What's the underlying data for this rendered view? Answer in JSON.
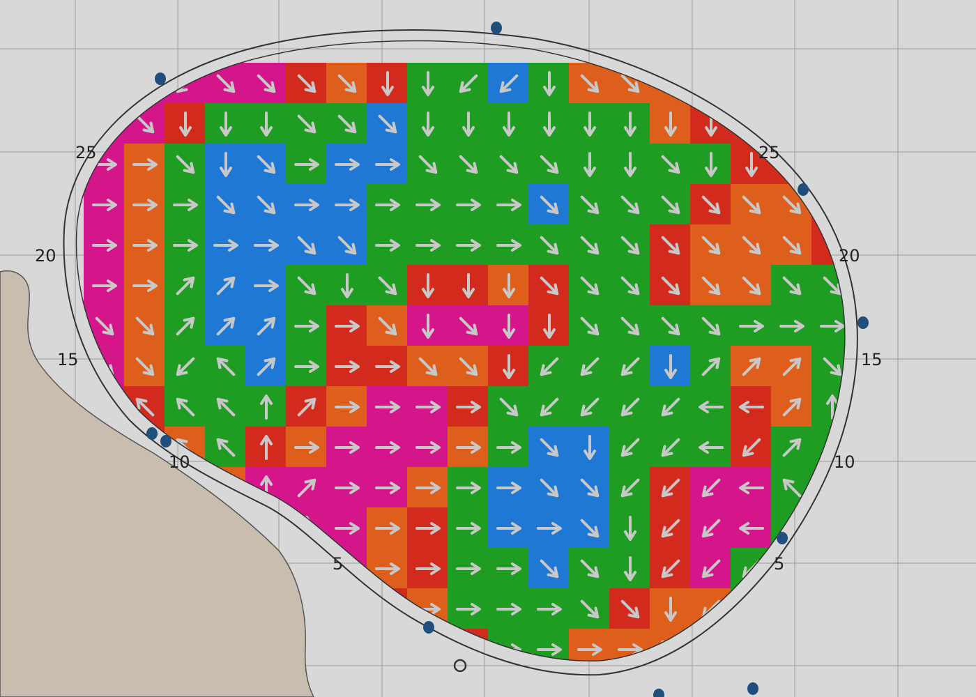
{
  "colors": {
    "background": "#d8d8d8",
    "grid": "#9a9a9a",
    "land": "#c9bdb0",
    "outline": "#333333",
    "arrow": "#c8c8c8",
    "dot": "#1f4f7a",
    "M": "#d4168a",
    "O": "#de5e1c",
    "R": "#d22a1c",
    "G": "#1f9c22",
    "B": "#1e78d4"
  },
  "ticks_left": [
    "25",
    "20",
    "15",
    "10",
    "5"
  ],
  "ticks_right": [
    "25",
    "20",
    "15",
    "10",
    "5"
  ],
  "field": {
    "cells": [
      "MMMMMRORGGBGOOOORRR",
      "MMRGGGGBGGGGGGORRRR",
      "MOGBBGBBGGGGGGGGRRR",
      "MOGBBBBGGGGBGGGROOR",
      "MOGBBBBGGGGGGGROOOR",
      "MOGBBGGGRRORGGROOGG",
      "MOGBBGROMMMRGGGGGGG",
      "MOGGBGRROORGGGBGOOG",
      "MRGGGROMMRGGGGGGROG",
      "MROGROMMMOGBBGGGRGG",
      "MMROMMMMOGBBBGRMMGG",
      "MMMOMMMORGBBBGRMMGG",
      "MMMOOMMORGGBGGRMGGG",
      "MMMOOROROGGGGROOGGG",
      "MMMOORRORRGGOOOOOOO"
    ],
    "arrows": [
      "3331111223321111222",
      "1122211122222222111",
      "0012100011112212222",
      "0001100000011111111",
      "0000011000011111111",
      "0077012122211111111",
      "1177700121221111000",
      "1135700011233327771",
      "5555670000133334476",
      "5555600000012334377",
      "6666670000011333453",
      "6666660000001233433",
      "0000000000011233333",
      "0000000000001123333",
      "0000000000000012333"
    ]
  }
}
